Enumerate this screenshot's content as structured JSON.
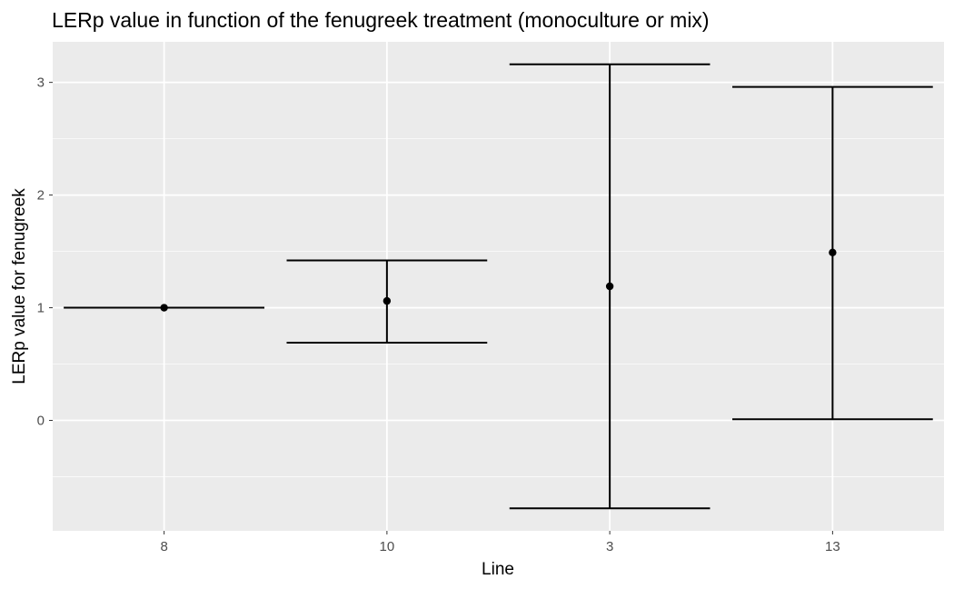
{
  "chart_data": {
    "type": "scatter",
    "title": "LERp value in function of the fenugreek treatment (monoculture or mix)",
    "xlabel": "Line",
    "ylabel": "LERp value for fenugreek",
    "categories": [
      "8",
      "10",
      "3",
      "13"
    ],
    "points": [
      {
        "x": "8",
        "y": 1.0,
        "ymin": 1.0,
        "ymax": 1.0
      },
      {
        "x": "10",
        "y": 1.06,
        "ymin": 0.69,
        "ymax": 1.42
      },
      {
        "x": "3",
        "y": 1.19,
        "ymin": -0.78,
        "ymax": 3.16
      },
      {
        "x": "13",
        "y": 1.49,
        "ymin": 0.01,
        "ymax": 2.96
      }
    ],
    "y_ticks": [
      0,
      1,
      2,
      3
    ],
    "y_tick_labels": [
      "0",
      "1",
      "2",
      "3"
    ],
    "ylim": [
      -0.98,
      3.36
    ],
    "grid": true,
    "legend": "none",
    "colors": {
      "panel_background": "#ebebeb",
      "grid_major": "#ffffff",
      "marks": "#000000",
      "tick_text": "#4d4d4d"
    }
  }
}
